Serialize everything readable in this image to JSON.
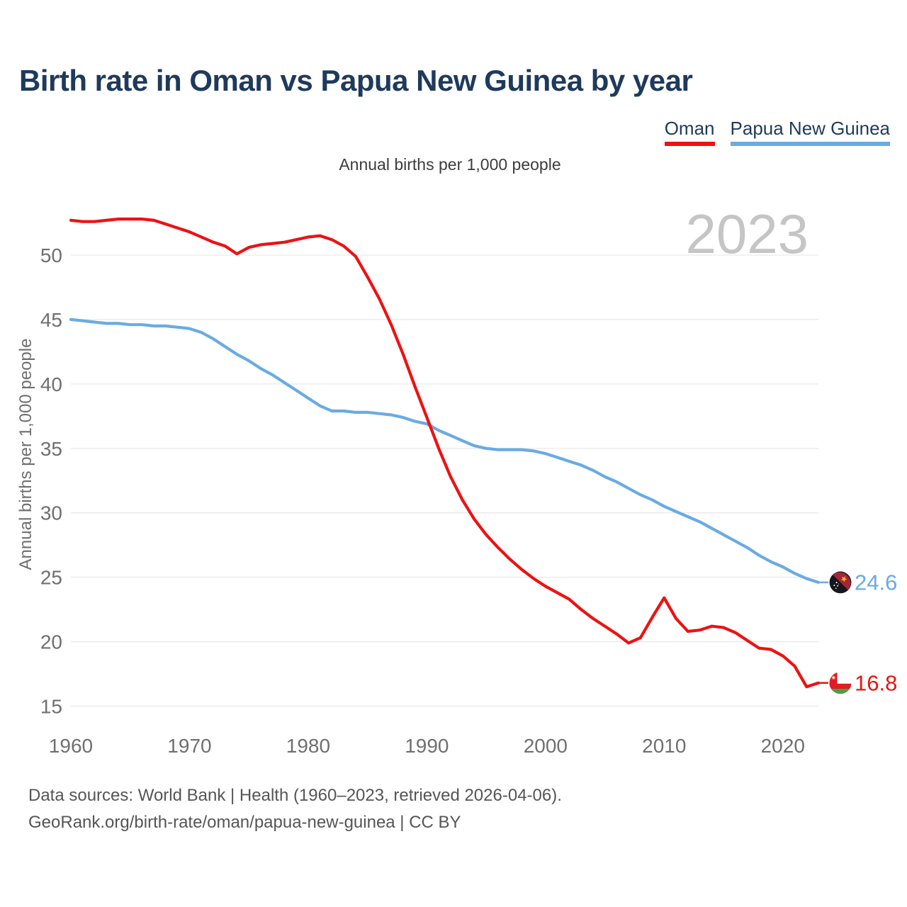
{
  "title": "Birth rate in Oman vs Papua New Guinea by year",
  "subtitle": "Annual births per 1,000 people",
  "watermark": "2023",
  "legend": {
    "items": [
      {
        "label": "Oman",
        "color": "#ee1111"
      },
      {
        "label": "Papua New Guinea",
        "color": "#6aabe2"
      }
    ]
  },
  "footer": {
    "line1": "Data sources: World Bank | Health (1960–2023, retrieved 2026-04-06).",
    "line2": "GeoRank.org/birth-rate/oman/papua-new-guinea | CC BY"
  },
  "chart_data": {
    "type": "line",
    "title": "Birth rate in Oman vs Papua New Guinea by year",
    "ylabel": "Annual births per 1,000 people",
    "xlabel": "",
    "xlim": [
      1960,
      2023
    ],
    "ylim": [
      13.5,
      54
    ],
    "y_ticks": [
      15,
      20,
      25,
      30,
      35,
      40,
      45,
      50
    ],
    "x_ticks": [
      1960,
      1970,
      1980,
      1990,
      2000,
      2010,
      2020
    ],
    "grid": "horizontal",
    "legend_position": "top-right",
    "x": [
      1960,
      1961,
      1962,
      1963,
      1964,
      1965,
      1966,
      1967,
      1968,
      1969,
      1970,
      1971,
      1972,
      1973,
      1974,
      1975,
      1976,
      1977,
      1978,
      1979,
      1980,
      1981,
      1982,
      1983,
      1984,
      1985,
      1986,
      1987,
      1988,
      1989,
      1990,
      1991,
      1992,
      1993,
      1994,
      1995,
      1996,
      1997,
      1998,
      1999,
      2000,
      2001,
      2002,
      2003,
      2004,
      2005,
      2006,
      2007,
      2008,
      2009,
      2010,
      2011,
      2012,
      2013,
      2014,
      2015,
      2016,
      2017,
      2018,
      2019,
      2020,
      2021,
      2022,
      2023
    ],
    "series": [
      {
        "name": "Oman",
        "color": "#ee1111",
        "end_label": "16.8",
        "flag_icon": "oman-flag-icon",
        "values": [
          52.7,
          52.6,
          52.6,
          52.7,
          52.8,
          52.8,
          52.8,
          52.7,
          52.4,
          52.1,
          51.8,
          51.4,
          51.0,
          50.7,
          50.1,
          50.6,
          50.8,
          50.9,
          51.0,
          51.2,
          51.4,
          51.5,
          51.2,
          50.7,
          49.9,
          48.3,
          46.6,
          44.6,
          42.3,
          39.8,
          37.4,
          35.0,
          32.8,
          31.0,
          29.5,
          28.3,
          27.3,
          26.4,
          25.6,
          24.9,
          24.3,
          23.8,
          23.3,
          22.5,
          21.8,
          21.2,
          20.6,
          19.9,
          20.3,
          21.9,
          23.4,
          21.8,
          20.8,
          20.9,
          21.2,
          21.1,
          20.7,
          20.1,
          19.5,
          19.4,
          18.9,
          18.1,
          16.5,
          16.8
        ]
      },
      {
        "name": "Papua New Guinea",
        "color": "#6aabe2",
        "end_label": "24.6",
        "flag_icon": "papua-new-guinea-flag-icon",
        "values": [
          45.0,
          44.9,
          44.8,
          44.7,
          44.7,
          44.6,
          44.6,
          44.5,
          44.5,
          44.4,
          44.3,
          44.0,
          43.5,
          42.9,
          42.3,
          41.8,
          41.2,
          40.7,
          40.1,
          39.5,
          38.9,
          38.3,
          37.9,
          37.9,
          37.8,
          37.8,
          37.7,
          37.6,
          37.4,
          37.1,
          36.9,
          36.4,
          36.0,
          35.6,
          35.2,
          35.0,
          34.9,
          34.9,
          34.9,
          34.8,
          34.6,
          34.3,
          34.0,
          33.7,
          33.3,
          32.8,
          32.4,
          31.9,
          31.4,
          31.0,
          30.5,
          30.1,
          29.7,
          29.3,
          28.8,
          28.3,
          27.8,
          27.3,
          26.7,
          26.2,
          25.8,
          25.3,
          24.9,
          24.6
        ]
      }
    ]
  }
}
